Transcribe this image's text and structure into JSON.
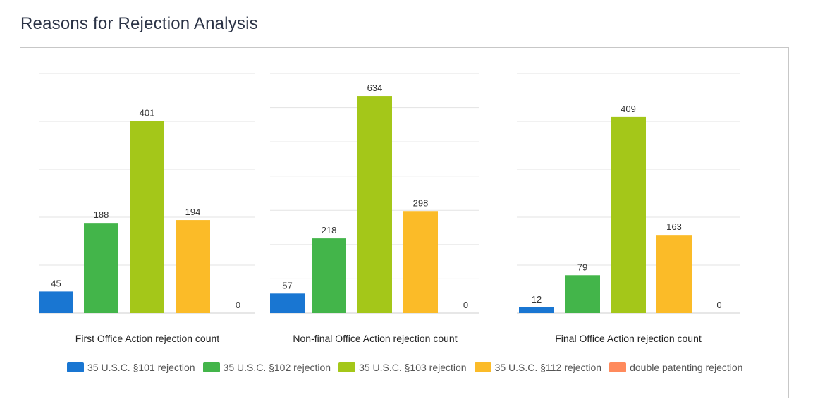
{
  "page": {
    "title": "Reasons for Rejection Analysis"
  },
  "colors": {
    "s101": "#1976d2",
    "s102": "#43b54a",
    "s103": "#a4c719",
    "s112": "#fbbb28",
    "double": "#ff8a5c",
    "grid": "#e3e3e3",
    "axis": "#cfcfcf",
    "label": "#333333"
  },
  "legend": [
    {
      "label": "35 U.S.C. §101 rejection",
      "color_key": "s101"
    },
    {
      "label": "35 U.S.C. §102 rejection",
      "color_key": "s102"
    },
    {
      "label": "35 U.S.C. §103 rejection",
      "color_key": "s103"
    },
    {
      "label": "35 U.S.C. §112 rejection",
      "color_key": "s112"
    },
    {
      "label": "double patenting rejection",
      "color_key": "double"
    }
  ],
  "chart_data": [
    {
      "type": "bar",
      "xlabel": "First Office Action rejection count",
      "categories": [
        "35 U.S.C. §101 rejection",
        "35 U.S.C. §102 rejection",
        "35 U.S.C. §103 rejection",
        "35 U.S.C. §112 rejection",
        "double patenting rejection"
      ],
      "values": [
        45,
        188,
        401,
        194,
        0
      ],
      "ylim": [
        0,
        500
      ],
      "grid": true
    },
    {
      "type": "bar",
      "xlabel": "Non-final Office Action rejection count",
      "categories": [
        "35 U.S.C. §101 rejection",
        "35 U.S.C. §102 rejection",
        "35 U.S.C. §103 rejection",
        "35 U.S.C. §112 rejection",
        "double patenting rejection"
      ],
      "values": [
        57,
        218,
        634,
        298,
        0
      ],
      "ylim": [
        0,
        700
      ],
      "grid": true
    },
    {
      "type": "bar",
      "xlabel": "Final Office Action rejection count",
      "categories": [
        "35 U.S.C. §101 rejection",
        "35 U.S.C. §102 rejection",
        "35 U.S.C. §103 rejection",
        "35 U.S.C. §112 rejection",
        "double patenting rejection"
      ],
      "values": [
        12,
        79,
        409,
        163,
        0
      ],
      "ylim": [
        0,
        500
      ],
      "grid": true
    }
  ]
}
